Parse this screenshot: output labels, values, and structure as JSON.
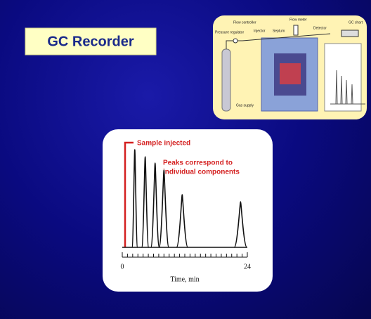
{
  "slide": {
    "title": "GC Recorder",
    "diagram": {
      "labels": [
        "Flow controller",
        "Pressure regulator",
        "Injector",
        "Septum",
        "Flow meter",
        "Detector",
        "GC chart",
        "Gas supply"
      ]
    }
  },
  "chart_data": {
    "type": "peaks",
    "annotations": [
      "Sample injected",
      "Peaks correspond to",
      "individual components"
    ],
    "x_label": "Time, min",
    "x": [
      2.4,
      4.4,
      6.3,
      8.0,
      11.5,
      22.7
    ],
    "values": [
      139,
      129,
      120,
      110,
      75,
      65
    ],
    "color": "#111111",
    "xlim": [
      0,
      24
    ],
    "xticks": [
      0,
      24
    ],
    "minor_xticks": [
      1,
      2,
      3,
      4,
      5,
      6,
      7,
      8,
      9,
      10,
      11,
      12,
      13,
      14,
      15,
      16,
      17,
      18,
      19,
      20,
      21,
      22,
      23
    ],
    "ylim": [
      0,
      150
    ]
  }
}
